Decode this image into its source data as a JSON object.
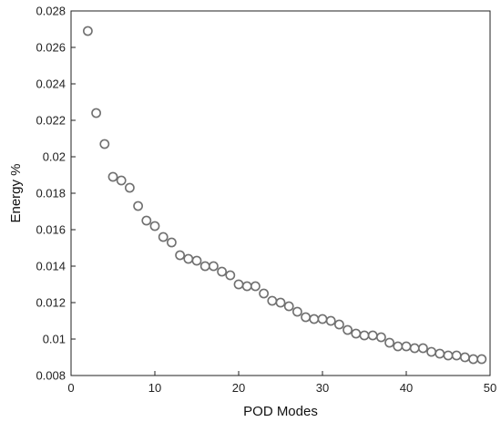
{
  "chart_data": {
    "type": "scatter",
    "title": "",
    "xlabel": "POD Modes",
    "ylabel": "Energy %",
    "xlim": [
      0,
      50
    ],
    "ylim": [
      0.008,
      0.028
    ],
    "grid": false,
    "legend": "none",
    "marker": "open-circle",
    "colors": {
      "marker_stroke": "#707070",
      "marker_fill": "#ffffff",
      "axis": "#222222"
    },
    "xticks": [
      0,
      10,
      20,
      30,
      40,
      50
    ],
    "xtick_labels": [
      "0",
      "10",
      "20",
      "30",
      "40",
      "50"
    ],
    "yticks": [
      0.008,
      0.01,
      0.012,
      0.014,
      0.016,
      0.018,
      0.02,
      0.022,
      0.024,
      0.026,
      0.028
    ],
    "ytick_labels": [
      "0.008",
      "0.01",
      "0.012",
      "0.014",
      "0.016",
      "0.018",
      "0.02",
      "0.022",
      "0.024",
      "0.026",
      "0.028"
    ],
    "series": [
      {
        "x": [
          2,
          3,
          4,
          5,
          6,
          7,
          8,
          9,
          10,
          11,
          12,
          13,
          14,
          15,
          16,
          17,
          18,
          19,
          20,
          21,
          22,
          23,
          24,
          25,
          26,
          27,
          28,
          29,
          30,
          31,
          32,
          33,
          34,
          35,
          36,
          37,
          38,
          39,
          40,
          41,
          42,
          43,
          44,
          45,
          46,
          47,
          48,
          49
        ],
        "y": [
          0.0269,
          0.0224,
          0.0207,
          0.0189,
          0.0187,
          0.0183,
          0.0173,
          0.0165,
          0.0162,
          0.0156,
          0.0153,
          0.0146,
          0.0144,
          0.0143,
          0.014,
          0.014,
          0.0137,
          0.0135,
          0.013,
          0.0129,
          0.0129,
          0.0125,
          0.0121,
          0.012,
          0.0118,
          0.0115,
          0.0112,
          0.0111,
          0.0111,
          0.011,
          0.0108,
          0.0105,
          0.0103,
          0.0102,
          0.0102,
          0.0101,
          0.0098,
          0.0096,
          0.0096,
          0.0095,
          0.0095,
          0.0093,
          0.0092,
          0.0091,
          0.0091,
          0.009,
          0.0089,
          0.0089
        ]
      }
    ]
  }
}
